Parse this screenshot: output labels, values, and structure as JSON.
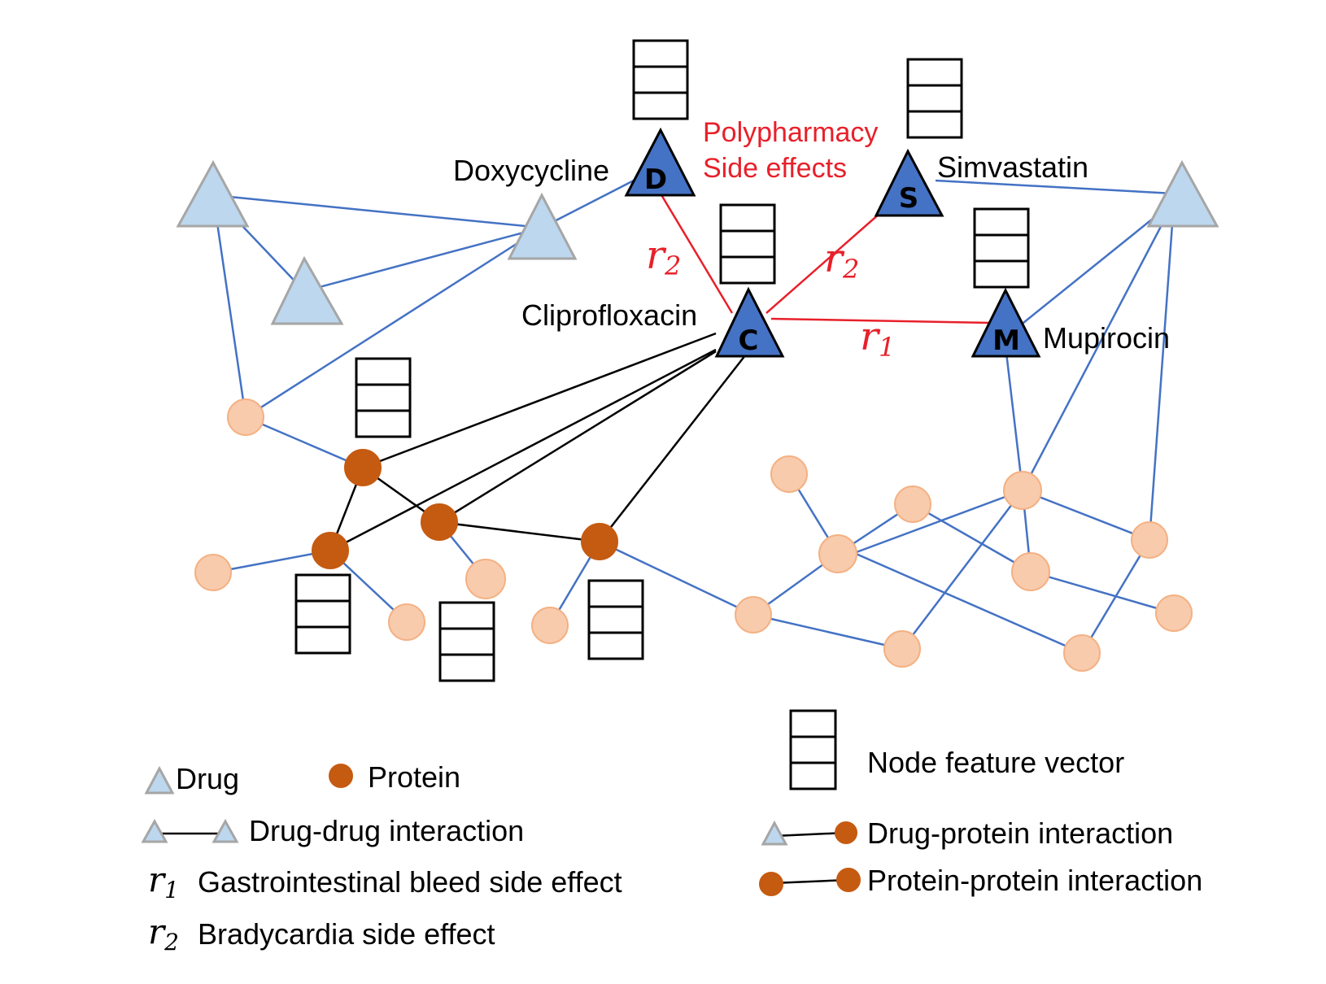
{
  "diagram": {
    "drugs": {
      "doxycycline": {
        "name": "Doxycycline",
        "letter": "D"
      },
      "cliprofloxacin": {
        "name": "Cliprofloxacin",
        "letter": "C"
      },
      "simvastatin": {
        "name": "Simvastatin",
        "letter": "S"
      },
      "mupirocin": {
        "name": "Mupirocin",
        "letter": "M"
      }
    },
    "annotation": {
      "line1": "Polypharmacy",
      "line2": "Side effects"
    },
    "relations": {
      "r1_symbol": "r",
      "r1_sub": "1",
      "r2_symbol": "r",
      "r2_sub": "2"
    }
  },
  "legend": {
    "drug": "Drug",
    "protein": "Protein",
    "node_feature_vector": "Node feature vector",
    "drug_drug": "Drug-drug interaction",
    "drug_protein": "Drug-protein interaction",
    "protein_protein": "Protein-protein interaction",
    "r1_label": "Gastrointestinal bleed side effect",
    "r2_label": "Bradycardia side effect",
    "r_symbol": "r",
    "r1_sub": "1",
    "r2_sub": "2"
  },
  "colors": {
    "drug_light": "#bdd7ee",
    "drug_dark": "#4472c4",
    "protein_light": "#f8cbad",
    "protein_dark": "#c55a11",
    "blue_edge": "#4472c4",
    "red_edge": "#e8202a"
  }
}
